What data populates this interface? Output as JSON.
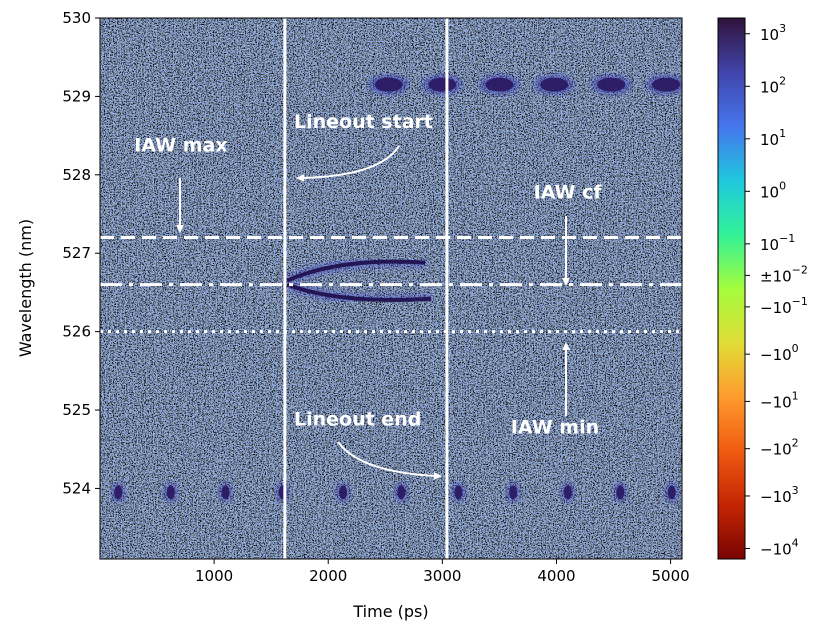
{
  "chart_data": {
    "type": "heatmap",
    "title": "",
    "xlabel": "Time (ps)",
    "ylabel": "Wavelength (nm)",
    "xlim": [
      0,
      5100
    ],
    "ylim": [
      523.1,
      530.0
    ],
    "xticks": [
      1000,
      2000,
      3000,
      4000,
      5000
    ],
    "yticks": [
      524,
      525,
      526,
      527,
      528,
      529,
      530
    ],
    "grid": false,
    "colormap": "turbo-symlog",
    "colorbar": {
      "ticks": [
        {
          "value": 3,
          "base": "10",
          "exp": "3"
        },
        {
          "value": 2,
          "base": "10",
          "exp": "2"
        },
        {
          "value": 1,
          "base": "10",
          "exp": "1"
        },
        {
          "value": 0,
          "base": "10",
          "exp": "0"
        },
        {
          "value": -1,
          "base": "10",
          "exp": "−1"
        },
        {
          "value": -1.6,
          "base": "±10",
          "exp": "−2"
        },
        {
          "value": -2.2,
          "base": "−10",
          "exp": "−1"
        },
        {
          "value": -3.1,
          "base": "−10",
          "exp": "0"
        },
        {
          "value": -4.0,
          "base": "−10",
          "exp": "1"
        },
        {
          "value": -4.9,
          "base": "−10",
          "exp": "2"
        },
        {
          "value": -5.8,
          "base": "−10",
          "exp": "3"
        },
        {
          "value": -6.8,
          "base": "−10",
          "exp": "4"
        }
      ]
    },
    "vertical_lines": [
      {
        "x": 1620,
        "style": "solid"
      },
      {
        "x": 3040,
        "style": "solid"
      }
    ],
    "horizontal_lines": [
      {
        "y": 527.2,
        "style": "dashed"
      },
      {
        "y": 526.6,
        "style": "dashdot"
      },
      {
        "y": 526.0,
        "style": "dotted"
      }
    ],
    "annotations": [
      {
        "text": "IAW max",
        "x": 300,
        "y": 528.3
      },
      {
        "text": "Lineout start",
        "x": 1700,
        "y": 528.6
      },
      {
        "text": "IAW cf",
        "x": 3800,
        "y": 527.7
      },
      {
        "text": "Lineout end",
        "x": 1700,
        "y": 524.8
      },
      {
        "text": "IAW min",
        "x": 3600,
        "y": 524.7
      }
    ],
    "features": {
      "top_row": {
        "y": 529.15,
        "x": [
          2530,
          3000,
          3500,
          3980,
          4480,
          4960
        ]
      },
      "bottom_row": {
        "y": 523.95,
        "x": [
          160,
          620,
          1100,
          1600,
          2130,
          2640,
          3140,
          3620,
          4100,
          4560,
          5010
        ]
      }
    }
  }
}
